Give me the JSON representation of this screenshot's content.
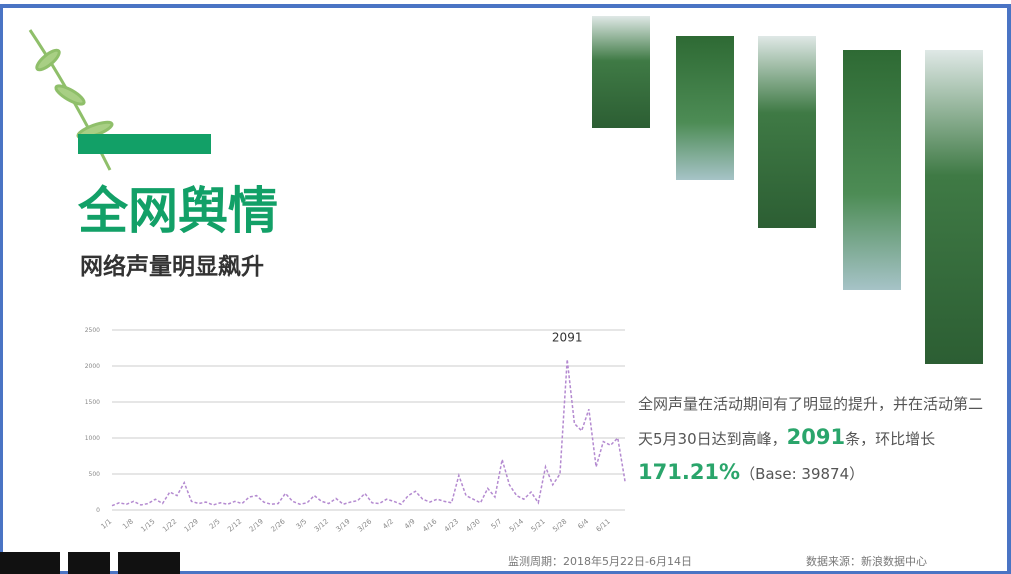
{
  "title": "全网舆情",
  "subtitle": "网络声量明显飙升",
  "description": {
    "part1": "全网声量在活动期间有了明显的提升，并在活动第二天5月30日达到高峰，",
    "peak": "2091",
    "part2": "条，环比增长",
    "growth": "171.21%",
    "part3": "（Base: 39874）"
  },
  "footer": {
    "period": "监测周期：2018年5月22日-6月14日",
    "source": "数据来源：新浪数据中心"
  },
  "chart_data": {
    "type": "line",
    "categories": [
      "1/1",
      null,
      null,
      "1/8",
      null,
      null,
      "1/15",
      null,
      null,
      "1/22",
      null,
      null,
      "1/29",
      null,
      null,
      "2/5",
      null,
      null,
      "2/12",
      null,
      null,
      "2/19",
      null,
      null,
      "2/26",
      null,
      null,
      "3/5",
      null,
      null,
      "3/12",
      null,
      null,
      "3/19",
      null,
      null,
      "3/26",
      null,
      null,
      "4/2",
      null,
      null,
      "4/9",
      null,
      null,
      "4/16",
      null,
      null,
      "4/23",
      null,
      null,
      "4/30",
      null,
      null,
      "5/7",
      null,
      null,
      "5/14",
      null,
      null,
      "5/21",
      null,
      null,
      "5/28",
      null,
      null,
      "6/4",
      null,
      null,
      "6/11",
      null,
      null
    ],
    "series": [
      {
        "color": "#b48ad0",
        "values": [
          60,
          100,
          80,
          120,
          70,
          90,
          150,
          90,
          250,
          200,
          380,
          120,
          90,
          110,
          70,
          100,
          80,
          120,
          90,
          180,
          200,
          110,
          80,
          90,
          230,
          120,
          80,
          100,
          200,
          120,
          90,
          160,
          80,
          110,
          130,
          230,
          100,
          90,
          150,
          120,
          80,
          200,
          260,
          150,
          110,
          150,
          120,
          100,
          480,
          200,
          150,
          100,
          300,
          180,
          700,
          350,
          200,
          150,
          250,
          100,
          600,
          350,
          500,
          2091,
          1200,
          1100,
          1400,
          600,
          950,
          900,
          1000,
          400
        ]
      }
    ],
    "ylim": [
      0,
      2500
    ],
    "yticks": [
      0,
      500,
      1000,
      1500,
      2000,
      2500
    ],
    "grid": true,
    "annotation": "2091"
  }
}
